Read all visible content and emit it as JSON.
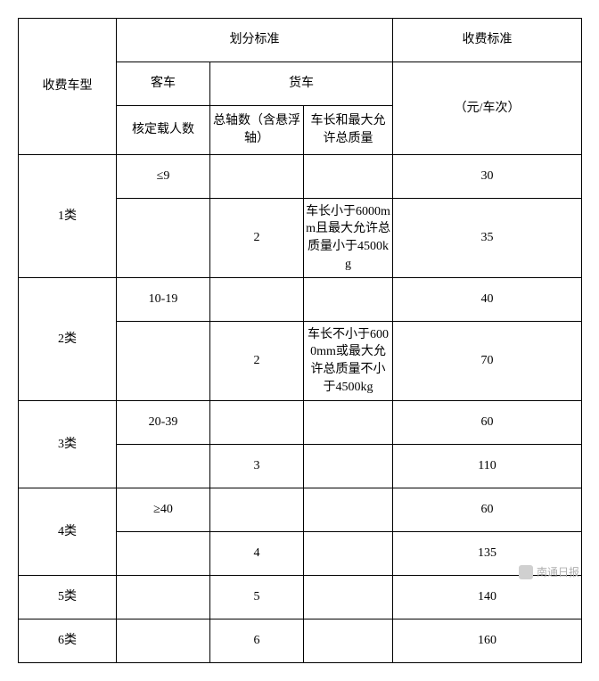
{
  "headers": {
    "vehicle_type": "收费车型",
    "criteria": "划分标准",
    "bus": "客车",
    "truck": "货车",
    "capacity": "核定载人数",
    "axles": "总轴数（含悬浮轴）",
    "length_mass": "车长和最大允许总质量",
    "fee_std": "收费标准",
    "fee_unit": "（元/车次）"
  },
  "rows": {
    "cat1": "1类",
    "cat1_bus_cap": "≤9",
    "cat1_bus_fee": "30",
    "cat1_truck_ax": "2",
    "cat1_truck_desc": "车长小于6000mm且最大允许总质量小于4500kg",
    "cat1_truck_fee": "35",
    "cat2": "2类",
    "cat2_bus_cap": "10-19",
    "cat2_bus_fee": "40",
    "cat2_truck_ax": "2",
    "cat2_truck_desc": "车长不小于6000mm或最大允许总质量不小于4500kg",
    "cat2_truck_fee": "70",
    "cat3": "3类",
    "cat3_bus_cap": "20-39",
    "cat3_bus_fee": "60",
    "cat3_truck_ax": "3",
    "cat3_truck_fee": "110",
    "cat4": "4类",
    "cat4_bus_cap": "≥40",
    "cat4_bus_fee": "60",
    "cat4_truck_ax": "4",
    "cat4_truck_fee": "135",
    "cat5": "5类",
    "cat5_truck_ax": "5",
    "cat5_truck_fee": "140",
    "cat6": "6类",
    "cat6_truck_ax": "6",
    "cat6_truck_fee": "160"
  },
  "watermark": "南通日报"
}
